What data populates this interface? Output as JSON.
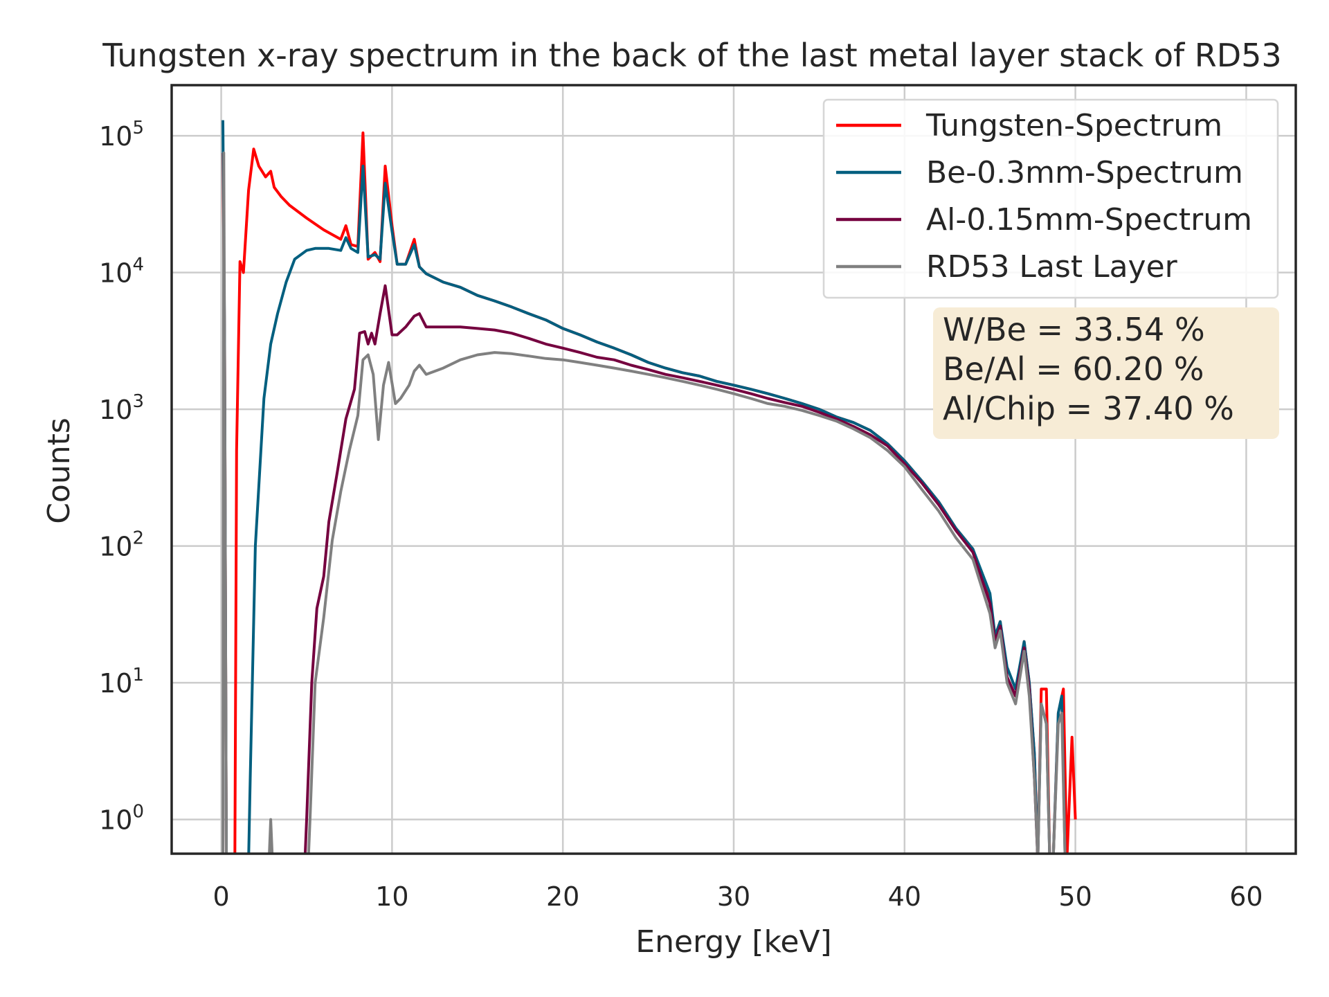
{
  "chart_data": {
    "type": "line",
    "title": "Tungsten x-ray spectrum in the back of the last metal layer stack of RD53",
    "xlabel": "Energy [keV]",
    "ylabel": "Counts",
    "xlim": [
      -2.9,
      62.9
    ],
    "ylim_log10": [
      -0.25,
      5.37
    ],
    "yscale": "log",
    "xticks": [
      "0",
      "10",
      "20",
      "30",
      "40",
      "50",
      "60"
    ],
    "yticks": [
      {
        "base": "10",
        "exp": "0"
      },
      {
        "base": "10",
        "exp": "1"
      },
      {
        "base": "10",
        "exp": "2"
      },
      {
        "base": "10",
        "exp": "3"
      },
      {
        "base": "10",
        "exp": "4"
      },
      {
        "base": "10",
        "exp": "5"
      }
    ],
    "grid": true,
    "legend_position": "top-right",
    "annotation": [
      "W/Be = 33.54 %",
      " Be/Al = 60.20 %",
      " Al/Chip = 37.40 %"
    ],
    "annotation_bg": "#f7ecd6",
    "series": [
      {
        "name": "Tungsten-Spectrum",
        "color": "#ff0000",
        "points": [
          [
            0.1,
            75000
          ],
          [
            0.2,
            3000
          ],
          [
            0.3,
            0.5
          ],
          [
            0.8,
            0.5
          ],
          [
            0.9,
            500
          ],
          [
            1.1,
            12000
          ],
          [
            1.3,
            10000
          ],
          [
            1.6,
            40000
          ],
          [
            1.9,
            80000
          ],
          [
            2.2,
            60000
          ],
          [
            2.6,
            50000
          ],
          [
            2.9,
            55000
          ],
          [
            3.1,
            42000
          ],
          [
            3.5,
            36000
          ],
          [
            4,
            31000
          ],
          [
            5,
            25000
          ],
          [
            6,
            20500
          ],
          [
            7,
            17500
          ],
          [
            7.3,
            22000
          ],
          [
            7.6,
            16000
          ],
          [
            8,
            15500
          ],
          [
            8.3,
            105000
          ],
          [
            8.6,
            12500
          ],
          [
            9,
            14000
          ],
          [
            9.3,
            12000
          ],
          [
            9.6,
            60000
          ],
          [
            10,
            22000
          ],
          [
            10.3,
            11500
          ],
          [
            10.8,
            11500
          ],
          [
            11.3,
            17500
          ],
          [
            11.6,
            11000
          ],
          [
            12,
            9800
          ],
          [
            13,
            8500
          ],
          [
            14,
            7800
          ],
          [
            15,
            6800
          ],
          [
            16,
            6200
          ],
          [
            17,
            5600
          ],
          [
            18,
            5000
          ],
          [
            19,
            4500
          ],
          [
            20,
            3900
          ],
          [
            21,
            3500
          ],
          [
            22,
            3100
          ],
          [
            23,
            2800
          ],
          [
            24,
            2500
          ],
          [
            25,
            2200
          ],
          [
            26,
            2000
          ],
          [
            27,
            1850
          ],
          [
            28,
            1750
          ],
          [
            29,
            1600
          ],
          [
            30,
            1500
          ],
          [
            31,
            1400
          ],
          [
            32,
            1300
          ],
          [
            33,
            1200
          ],
          [
            34,
            1100
          ],
          [
            35,
            1000
          ],
          [
            36,
            880
          ],
          [
            37,
            800
          ],
          [
            38,
            700
          ],
          [
            39,
            560
          ],
          [
            40,
            420
          ],
          [
            41,
            300
          ],
          [
            42,
            210
          ],
          [
            43,
            135
          ],
          [
            44,
            95
          ],
          [
            45,
            40
          ],
          [
            45.3,
            22
          ],
          [
            45.6,
            28
          ],
          [
            46,
            11
          ],
          [
            46.5,
            8
          ],
          [
            47,
            20
          ],
          [
            47.3,
            10
          ],
          [
            47.6,
            3
          ],
          [
            47.8,
            0.5
          ],
          [
            48,
            9
          ],
          [
            48.3,
            9
          ],
          [
            48.5,
            0.5
          ],
          [
            48.7,
            0.5
          ],
          [
            49,
            6
          ],
          [
            49.3,
            9
          ],
          [
            49.5,
            0.5
          ],
          [
            49.8,
            4
          ],
          [
            50,
            1
          ]
        ]
      },
      {
        "name": "Be-0.3mm-Spectrum",
        "color": "#005f7f",
        "points": [
          [
            0.1,
            130000
          ],
          [
            0.2,
            3000
          ],
          [
            0.3,
            0.5
          ],
          [
            1.6,
            0.5
          ],
          [
            1.7,
            2
          ],
          [
            2,
            100
          ],
          [
            2.5,
            1200
          ],
          [
            2.9,
            3000
          ],
          [
            3.3,
            5000
          ],
          [
            3.8,
            8500
          ],
          [
            4.3,
            12500
          ],
          [
            5,
            14500
          ],
          [
            5.5,
            15000
          ],
          [
            6.3,
            15000
          ],
          [
            7,
            14500
          ],
          [
            7.3,
            18000
          ],
          [
            7.6,
            15000
          ],
          [
            8,
            14000
          ],
          [
            8.3,
            60000
          ],
          [
            8.6,
            13000
          ],
          [
            9,
            13500
          ],
          [
            9.3,
            12500
          ],
          [
            9.6,
            45000
          ],
          [
            10,
            20000
          ],
          [
            10.3,
            11500
          ],
          [
            10.8,
            11500
          ],
          [
            11.3,
            16000
          ],
          [
            11.6,
            11000
          ],
          [
            12,
            9800
          ],
          [
            13,
            8500
          ],
          [
            14,
            7800
          ],
          [
            15,
            6800
          ],
          [
            16,
            6200
          ],
          [
            17,
            5600
          ],
          [
            18,
            5000
          ],
          [
            19,
            4500
          ],
          [
            20,
            3900
          ],
          [
            21,
            3500
          ],
          [
            22,
            3100
          ],
          [
            23,
            2800
          ],
          [
            24,
            2500
          ],
          [
            25,
            2200
          ],
          [
            26,
            2000
          ],
          [
            27,
            1850
          ],
          [
            28,
            1750
          ],
          [
            29,
            1600
          ],
          [
            30,
            1500
          ],
          [
            31,
            1400
          ],
          [
            32,
            1300
          ],
          [
            33,
            1200
          ],
          [
            34,
            1100
          ],
          [
            35,
            1000
          ],
          [
            36,
            880
          ],
          [
            37,
            800
          ],
          [
            38,
            700
          ],
          [
            39,
            560
          ],
          [
            40,
            420
          ],
          [
            41,
            300
          ],
          [
            42,
            210
          ],
          [
            43,
            135
          ],
          [
            44,
            95
          ],
          [
            45,
            45
          ],
          [
            45.3,
            22
          ],
          [
            45.6,
            28
          ],
          [
            46,
            13
          ],
          [
            46.5,
            9
          ],
          [
            47,
            20
          ],
          [
            47.3,
            10
          ],
          [
            47.6,
            3
          ],
          [
            47.8,
            0.5
          ],
          [
            48,
            7
          ],
          [
            48.3,
            5
          ],
          [
            48.5,
            0.5
          ],
          [
            48.7,
            0.5
          ],
          [
            49,
            6
          ],
          [
            49.2,
            8
          ],
          [
            49.4,
            0.5
          ]
        ]
      },
      {
        "name": "Al-0.15mm-Spectrum",
        "color": "#75003f",
        "points": [
          [
            4.9,
            0.5
          ],
          [
            5,
            1
          ],
          [
            5.3,
            10
          ],
          [
            5.6,
            35
          ],
          [
            6,
            60
          ],
          [
            6.3,
            150
          ],
          [
            6.8,
            350
          ],
          [
            7.3,
            850
          ],
          [
            7.8,
            1400
          ],
          [
            8.1,
            3600
          ],
          [
            8.4,
            3700
          ],
          [
            8.6,
            3000
          ],
          [
            8.8,
            3600
          ],
          [
            9,
            3000
          ],
          [
            9.3,
            5000
          ],
          [
            9.6,
            8000
          ],
          [
            10,
            3500
          ],
          [
            10.3,
            3500
          ],
          [
            10.8,
            4000
          ],
          [
            11.3,
            4800
          ],
          [
            11.6,
            5000
          ],
          [
            12,
            4000
          ],
          [
            13,
            4000
          ],
          [
            14,
            4000
          ],
          [
            15,
            3900
          ],
          [
            16,
            3800
          ],
          [
            17,
            3600
          ],
          [
            18,
            3300
          ],
          [
            19,
            3000
          ],
          [
            20,
            2800
          ],
          [
            21,
            2600
          ],
          [
            22,
            2400
          ],
          [
            23,
            2300
          ],
          [
            24,
            2100
          ],
          [
            25,
            1950
          ],
          [
            26,
            1800
          ],
          [
            27,
            1700
          ],
          [
            28,
            1600
          ],
          [
            29,
            1500
          ],
          [
            30,
            1400
          ],
          [
            31,
            1300
          ],
          [
            32,
            1200
          ],
          [
            33,
            1120
          ],
          [
            34,
            1050
          ],
          [
            35,
            950
          ],
          [
            36,
            850
          ],
          [
            37,
            750
          ],
          [
            38,
            650
          ],
          [
            39,
            540
          ],
          [
            40,
            400
          ],
          [
            41,
            290
          ],
          [
            42,
            200
          ],
          [
            43,
            130
          ],
          [
            44,
            90
          ],
          [
            45,
            38
          ],
          [
            45.3,
            20
          ],
          [
            45.6,
            26
          ],
          [
            46,
            11
          ],
          [
            46.5,
            8
          ],
          [
            47,
            18
          ],
          [
            47.3,
            9
          ],
          [
            47.6,
            2
          ],
          [
            47.8,
            0.5
          ]
        ]
      },
      {
        "name": "RD53 Last Layer",
        "color": "#808080",
        "points": [
          [
            0.1,
            0.5
          ],
          [
            0.15,
            75000
          ],
          [
            0.2,
            2500
          ],
          [
            0.3,
            0.5
          ],
          [
            2.8,
            0.5
          ],
          [
            2.9,
            1
          ],
          [
            3,
            0.5
          ],
          [
            5.1,
            0.5
          ],
          [
            5.2,
            1
          ],
          [
            5.5,
            10
          ],
          [
            6,
            30
          ],
          [
            6.5,
            110
          ],
          [
            7,
            250
          ],
          [
            7.5,
            500
          ],
          [
            8,
            900
          ],
          [
            8.3,
            2300
          ],
          [
            8.6,
            2500
          ],
          [
            8.9,
            1800
          ],
          [
            9.2,
            600
          ],
          [
            9.5,
            1500
          ],
          [
            9.8,
            2200
          ],
          [
            10.2,
            1100
          ],
          [
            10.5,
            1200
          ],
          [
            11,
            1500
          ],
          [
            11.3,
            1900
          ],
          [
            11.6,
            2100
          ],
          [
            12,
            1800
          ],
          [
            13,
            2000
          ],
          [
            14,
            2300
          ],
          [
            15,
            2500
          ],
          [
            16,
            2600
          ],
          [
            17,
            2550
          ],
          [
            18,
            2450
          ],
          [
            19,
            2350
          ],
          [
            20,
            2300
          ],
          [
            21,
            2200
          ],
          [
            22,
            2100
          ],
          [
            23,
            2000
          ],
          [
            24,
            1900
          ],
          [
            25,
            1800
          ],
          [
            26,
            1700
          ],
          [
            27,
            1600
          ],
          [
            28,
            1500
          ],
          [
            29,
            1400
          ],
          [
            30,
            1300
          ],
          [
            31,
            1200
          ],
          [
            32,
            1100
          ],
          [
            33,
            1050
          ],
          [
            34,
            980
          ],
          [
            35,
            900
          ],
          [
            36,
            820
          ],
          [
            37,
            720
          ],
          [
            38,
            620
          ],
          [
            39,
            500
          ],
          [
            40,
            380
          ],
          [
            41,
            260
          ],
          [
            42,
            180
          ],
          [
            43,
            115
          ],
          [
            44,
            80
          ],
          [
            45,
            32
          ],
          [
            45.3,
            18
          ],
          [
            45.6,
            24
          ],
          [
            46,
            10
          ],
          [
            46.5,
            7
          ],
          [
            47,
            17
          ],
          [
            47.3,
            8
          ],
          [
            47.6,
            2
          ],
          [
            47.8,
            0.5
          ],
          [
            48,
            7
          ],
          [
            48.3,
            5
          ],
          [
            48.5,
            0.5
          ],
          [
            48.7,
            0.5
          ],
          [
            49,
            5
          ],
          [
            49.2,
            6
          ],
          [
            49.4,
            0.5
          ]
        ]
      }
    ]
  }
}
